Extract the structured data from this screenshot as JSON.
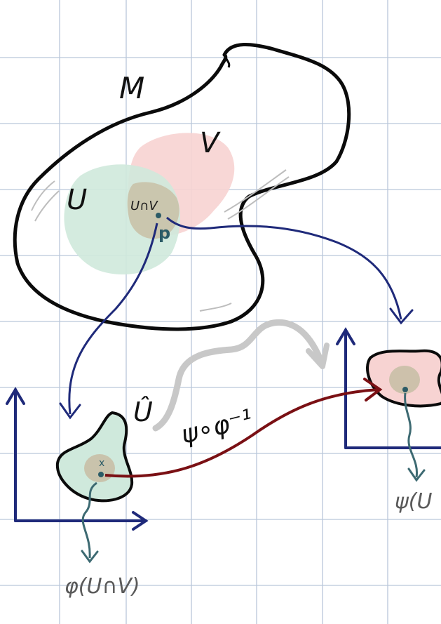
{
  "labels": {
    "manifold": "M",
    "set_u": "U",
    "set_v": "V",
    "intersection": "U∩V",
    "point": "p",
    "point_mark": "x",
    "chart_domain": "Û",
    "transition_map": "ψ∘φ⁻¹",
    "phi_image": "φ(U∩V)",
    "psi_image": "ψ(U"
  },
  "colors": {
    "grid": "#b9c6da",
    "outline": "#0b0b0b",
    "u_fill": "#cfe9dc",
    "v_fill": "#f7d3d2",
    "intersection_fill": "#c8bfa6",
    "axes": "#1f2a7a",
    "chart_arrow": "#1f2a7a",
    "transition_arrow": "#7a1014",
    "image_arrow": "#3d6a72",
    "gray_arrow": "#c8c8c8"
  }
}
